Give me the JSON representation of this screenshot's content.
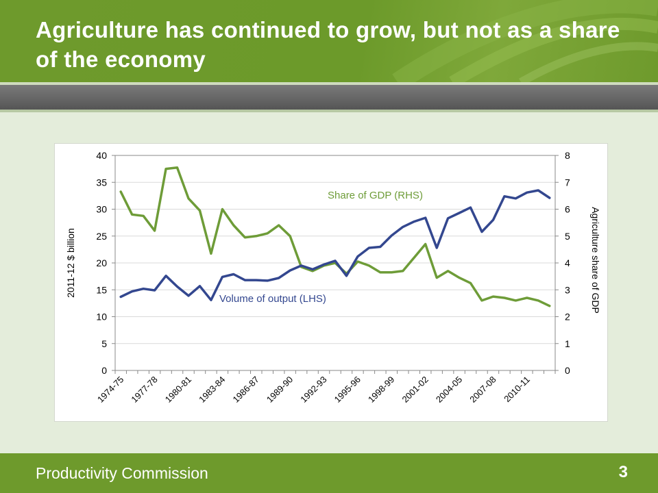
{
  "slide": {
    "title": "Agriculture has continued to grow, but not as a share of the economy",
    "footer": "Productivity Commission",
    "page_number": "3"
  },
  "colors": {
    "header_green": "#6e9a2c",
    "background": "#e4eddb",
    "volume_line": "#33478f",
    "share_line": "#6e9c38"
  },
  "chart_data": {
    "type": "line",
    "ylabel": "2011-12 $ billion",
    "ylabel_right": "Agriculture share of GDP",
    "ylim": [
      0,
      40
    ],
    "y_ticks": [
      "0",
      "5",
      "10",
      "15",
      "20",
      "25",
      "30",
      "35",
      "40"
    ],
    "ylim_right": [
      0,
      8
    ],
    "y_right_ticks": [
      "0",
      "1",
      "2",
      "3",
      "4",
      "5",
      "6",
      "7",
      "8"
    ],
    "x_tick_labels": [
      "1974-75",
      "1977-78",
      "1980-81",
      "1983-84",
      "1986-87",
      "1989-90",
      "1992-93",
      "1995-96",
      "1998-99",
      "2001-02",
      "2004-05",
      "2007-08",
      "2010-11"
    ],
    "grid": true,
    "legend": "inline labels",
    "x": [
      "1974-75",
      "1975-76",
      "1976-77",
      "1977-78",
      "1978-79",
      "1979-80",
      "1980-81",
      "1981-82",
      "1982-83",
      "1983-84",
      "1984-85",
      "1985-86",
      "1986-87",
      "1987-88",
      "1988-89",
      "1989-90",
      "1990-91",
      "1991-92",
      "1992-93",
      "1993-94",
      "1994-95",
      "1995-96",
      "1996-97",
      "1997-98",
      "1998-99",
      "1999-00",
      "2000-01",
      "2001-02",
      "2002-03",
      "2003-04",
      "2004-05",
      "2005-06",
      "2006-07",
      "2007-08",
      "2008-09",
      "2009-10",
      "2010-11",
      "2011-12",
      "2012-13"
    ],
    "series": [
      {
        "name": "Volume of output (LHS)",
        "axis": "left",
        "color": "#33478f",
        "values": [
          13.7,
          14.7,
          15.2,
          14.9,
          17.6,
          15.6,
          13.9,
          15.7,
          13.1,
          17.4,
          17.9,
          16.8,
          16.8,
          16.7,
          17.2,
          18.6,
          19.5,
          18.8,
          19.7,
          20.4,
          17.6,
          21.2,
          22.8,
          23.0,
          25.1,
          26.7,
          27.7,
          28.4,
          22.8,
          28.3,
          29.3,
          30.3,
          25.8,
          28.0,
          32.4,
          32.0,
          33.1,
          33.5,
          32.1
        ]
      },
      {
        "name": "Share of GDP (RHS)",
        "axis": "right",
        "color": "#6e9c38",
        "values": [
          6.65,
          5.8,
          5.75,
          5.2,
          7.5,
          7.55,
          6.4,
          5.95,
          4.35,
          6.0,
          5.4,
          4.95,
          5.0,
          5.1,
          5.4,
          5.0,
          3.85,
          3.7,
          3.9,
          4.0,
          3.6,
          4.05,
          3.9,
          3.65,
          3.65,
          3.7,
          4.2,
          4.7,
          3.45,
          3.7,
          3.45,
          3.25,
          2.6,
          2.75,
          2.7,
          2.6,
          2.7,
          2.6,
          2.4
        ]
      }
    ]
  }
}
